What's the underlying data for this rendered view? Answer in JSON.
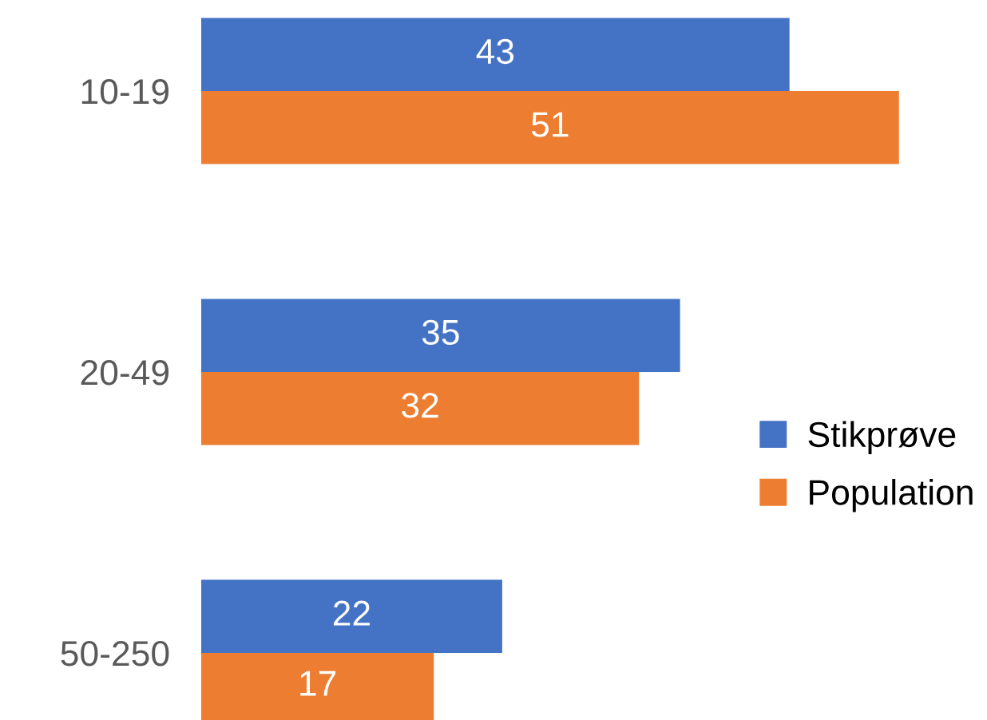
{
  "chart_data": {
    "type": "bar",
    "orientation": "horizontal",
    "categories": [
      "10-19",
      "20-49",
      "50-250"
    ],
    "series": [
      {
        "name": "Stikprøve",
        "color": "#4472c4",
        "values": [
          43,
          35,
          22
        ]
      },
      {
        "name": "Population",
        "color": "#ed7d31",
        "values": [
          51,
          32,
          17
        ]
      }
    ],
    "data_labels": true,
    "legend": "right",
    "grid": false
  }
}
